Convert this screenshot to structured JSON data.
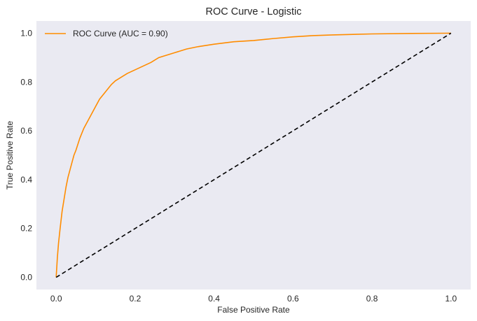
{
  "chart_data": {
    "type": "line",
    "title": "ROC Curve - Logistic",
    "xlabel": "False Positive Rate",
    "ylabel": "True Positive Rate",
    "xlim": [
      -0.05,
      1.05
    ],
    "ylim": [
      -0.05,
      1.05
    ],
    "x_ticks": [
      0.0,
      0.2,
      0.4,
      0.6,
      0.8,
      1.0
    ],
    "y_ticks": [
      0.0,
      0.2,
      0.4,
      0.6,
      0.8,
      1.0
    ],
    "x_tick_labels": [
      "0.0",
      "0.2",
      "0.4",
      "0.6",
      "0.8",
      "1.0"
    ],
    "y_tick_labels": [
      "0.0",
      "0.2",
      "0.4",
      "0.6",
      "0.8",
      "1.0"
    ],
    "grid": false,
    "background": "#eaeaf2",
    "legend": {
      "position": "top-left",
      "entries": [
        "ROC Curve (AUC = 0.90)"
      ]
    },
    "series": [
      {
        "name": "ROC Curve (AUC = 0.90)",
        "color": "#ff8c00",
        "style": "solid",
        "x": [
          0.0,
          0.003,
          0.006,
          0.01,
          0.015,
          0.02,
          0.025,
          0.03,
          0.035,
          0.04,
          0.045,
          0.05,
          0.06,
          0.07,
          0.08,
          0.09,
          0.1,
          0.11,
          0.12,
          0.13,
          0.14,
          0.15,
          0.16,
          0.17,
          0.18,
          0.2,
          0.22,
          0.24,
          0.26,
          0.28,
          0.3,
          0.33,
          0.36,
          0.4,
          0.45,
          0.5,
          0.55,
          0.6,
          0.65,
          0.7,
          0.8,
          0.9,
          1.0
        ],
        "y": [
          0.0,
          0.08,
          0.14,
          0.2,
          0.27,
          0.32,
          0.37,
          0.41,
          0.44,
          0.47,
          0.5,
          0.52,
          0.57,
          0.61,
          0.64,
          0.67,
          0.7,
          0.73,
          0.75,
          0.77,
          0.79,
          0.805,
          0.815,
          0.825,
          0.835,
          0.85,
          0.865,
          0.88,
          0.9,
          0.91,
          0.92,
          0.935,
          0.945,
          0.955,
          0.965,
          0.97,
          0.978,
          0.985,
          0.99,
          0.993,
          0.997,
          0.999,
          1.0
        ]
      },
      {
        "name": "",
        "color": "#000000",
        "style": "dashed",
        "x": [
          0.0,
          1.0
        ],
        "y": [
          0.0,
          1.0
        ]
      }
    ]
  }
}
